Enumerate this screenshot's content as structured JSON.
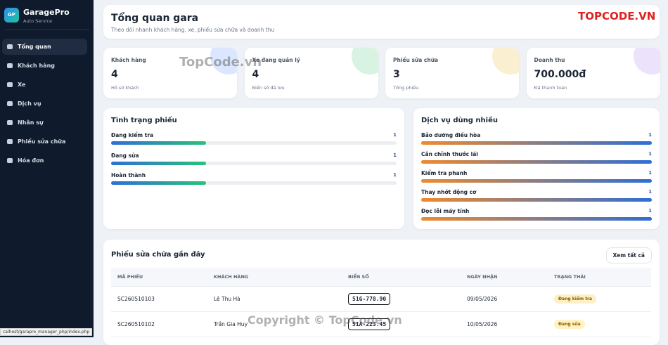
{
  "sidebar": {
    "logo": "GP",
    "brand": "GaragePro",
    "tagline": "Auto Service",
    "nav": [
      "Tổng quan",
      "Khách hàng",
      "Xe",
      "Dịch vụ",
      "Nhân sự",
      "Phiếu sửa chữa",
      "Hóa đơn"
    ],
    "active": 0
  },
  "status_url": "calhost/garapro_manager_php/index.php",
  "header": {
    "title": "Tổng quan gara",
    "subtitle": "Theo dõi nhanh khách hàng, xe, phiếu sửa chữa và doanh thu"
  },
  "stats": [
    {
      "label": "Khách hàng",
      "value": "4",
      "note": "Hồ sơ khách",
      "color": "#dbe6ff"
    },
    {
      "label": "Xe đang quản lý",
      "value": "4",
      "note": "Biển số đã lưu",
      "color": "#d9f3e2"
    },
    {
      "label": "Phiếu sửa chữa",
      "value": "3",
      "note": "Tổng phiếu",
      "color": "#fbefd2"
    },
    {
      "label": "Doanh thu",
      "value": "700.000đ",
      "note": "Đã thanh toán",
      "color": "#ece2fb"
    }
  ],
  "status": {
    "title": "Tình trạng phiếu",
    "items": [
      {
        "name": "Đang kiểm tra",
        "count": 1
      },
      {
        "name": "Đang sửa",
        "count": 1
      },
      {
        "name": "Hoàn thành",
        "count": 1
      }
    ]
  },
  "services": {
    "title": "Dịch vụ dùng nhiều",
    "items": [
      {
        "name": "Bảo dưỡng điều hòa",
        "count": 1
      },
      {
        "name": "Cân chỉnh thước lái",
        "count": 1
      },
      {
        "name": "Kiểm tra phanh",
        "count": 1
      },
      {
        "name": "Thay nhớt động cơ",
        "count": 1
      },
      {
        "name": "Đọc lỗi máy tính",
        "count": 1
      }
    ]
  },
  "recent": {
    "title": "Phiếu sửa chữa gần đây",
    "button": "Xem tất cả",
    "columns": [
      "MÃ PHIẾU",
      "KHÁCH HÀNG",
      "BIỂN SỐ",
      "NGÀY NHẬN",
      "TRẠNG THÁI"
    ],
    "rows": [
      [
        "SC260510103",
        "Lê Thu Hà",
        "51G-778.90",
        "09/05/2026",
        "Đang kiểm tra"
      ],
      [
        "SC260510102",
        "Trần Gia Huy",
        "51A-223.45",
        "10/05/2026",
        "Đang sửa"
      ]
    ]
  },
  "watermarks": [
    "TopCode.vn",
    "Copyright © TopCode.vn",
    "TOPCODE.VN"
  ]
}
